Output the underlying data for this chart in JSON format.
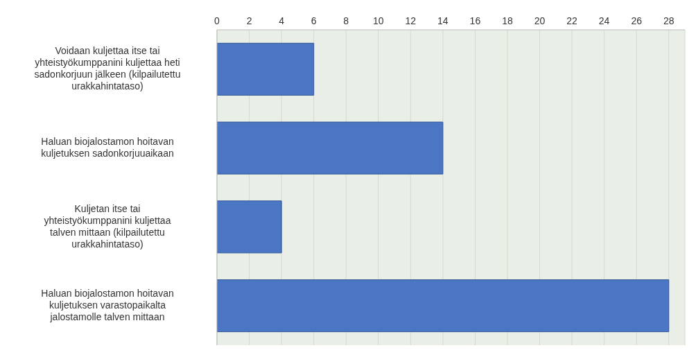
{
  "chart_data": {
    "type": "bar",
    "orientation": "horizontal",
    "categories": [
      "Voidaan kuljettaa itse tai yhteistyökumppanini kuljettaa heti sadonkorjuun jälkeen (kilpailutettu urakkahintataso)",
      "Haluan biojalostamon hoitavan kuljetuksen sadonkorjuuaikaan",
      "Kuljetan itse tai yhteistyökumppanini kuljettaa talven mittaan (kilpailutettu urakkahintataso)",
      "Haluan biojalostamon hoitavan kuljetuksen varastopaikalta jalostamolle talven mittaan"
    ],
    "values": [
      6,
      14,
      4,
      28
    ],
    "color": "#4a76c4",
    "xlim": [
      0,
      29
    ],
    "xticks": [
      0,
      2,
      4,
      6,
      8,
      10,
      12,
      14,
      16,
      18,
      20,
      22,
      24,
      26,
      28
    ],
    "grid": "x"
  }
}
